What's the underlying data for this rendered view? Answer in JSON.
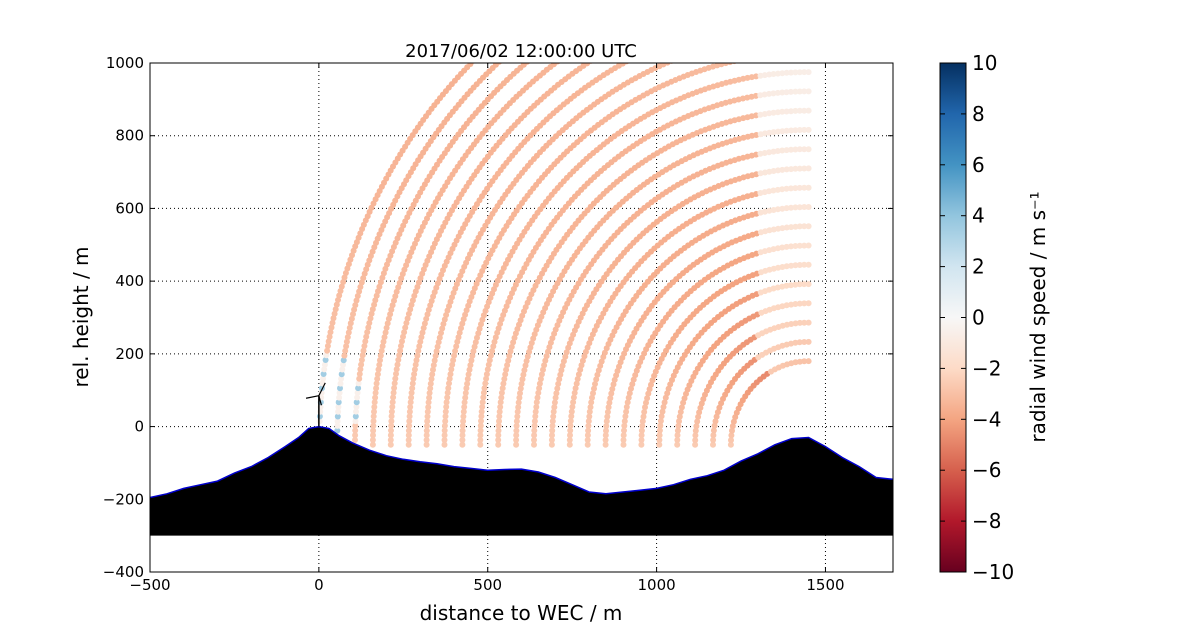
{
  "chart_data": {
    "type": "scatter",
    "title": "2017/06/02 12:00:00 UTC",
    "xlabel": "distance to WEC / m",
    "ylabel": "rel. height / m",
    "xlim": [
      -500,
      1700
    ],
    "ylim": [
      -400,
      1000
    ],
    "xticks": [
      -500,
      0,
      500,
      1000,
      1500
    ],
    "xtick_labels": [
      "−500",
      "0",
      "500",
      "1000",
      "1500"
    ],
    "yticks": [
      -400,
      -200,
      0,
      200,
      400,
      600,
      800,
      1000
    ],
    "ytick_labels": [
      "−400",
      "−200",
      "0",
      "200",
      "400",
      "600",
      "800",
      "1000"
    ],
    "grid": true,
    "colorbar": {
      "label": "radial wind speed / m s⁻¹",
      "range": [
        -10,
        10
      ],
      "ticks": [
        10,
        8,
        6,
        4,
        2,
        0,
        -2,
        -4,
        -6,
        -8,
        -10
      ],
      "tick_labels": [
        "10",
        "8",
        "6",
        "4",
        "2",
        "0",
        "−2",
        "−4",
        "−6",
        "−8",
        "−10"
      ],
      "colormap": "RdBu"
    },
    "scan_origin": [
      1450,
      -50
    ],
    "range_min": 230,
    "range_spacing": 53,
    "n_ranges": 24,
    "elevation_range_deg": [
      0,
      90
    ],
    "terrain_profile": {
      "x": [
        -500,
        -450,
        -400,
        -350,
        -300,
        -250,
        -200,
        -150,
        -100,
        -60,
        -30,
        0,
        30,
        60,
        100,
        150,
        200,
        250,
        300,
        350,
        400,
        450,
        500,
        550,
        600,
        650,
        700,
        750,
        800,
        850,
        900,
        950,
        1000,
        1050,
        1100,
        1150,
        1200,
        1250,
        1300,
        1350,
        1400,
        1450,
        1500,
        1550,
        1600,
        1650,
        1700
      ],
      "y": [
        -195,
        -185,
        -170,
        -160,
        -150,
        -128,
        -110,
        -85,
        -55,
        -30,
        -5,
        0,
        -5,
        -25,
        -45,
        -65,
        -80,
        -90,
        -97,
        -102,
        -110,
        -115,
        -120,
        -118,
        -117,
        -125,
        -140,
        -160,
        -180,
        -185,
        -180,
        -175,
        -170,
        -160,
        -145,
        -135,
        -120,
        -95,
        -75,
        -50,
        -33,
        -30,
        -55,
        -85,
        -110,
        -140,
        -145
      ],
      "base": -300,
      "fill_color": "#000000",
      "edge_color": "#0000cc"
    },
    "wec_marker": {
      "x": 0,
      "y": 0,
      "hub_height": 85
    },
    "colors": {
      "negative_max": "#67001f",
      "negative_mid": "#d6604d",
      "negative_light": "#f4a582",
      "neutral": "#f7f7f7",
      "positive_light": "#92c5de",
      "positive_mid": "#4393c3",
      "positive_max": "#053061"
    }
  }
}
